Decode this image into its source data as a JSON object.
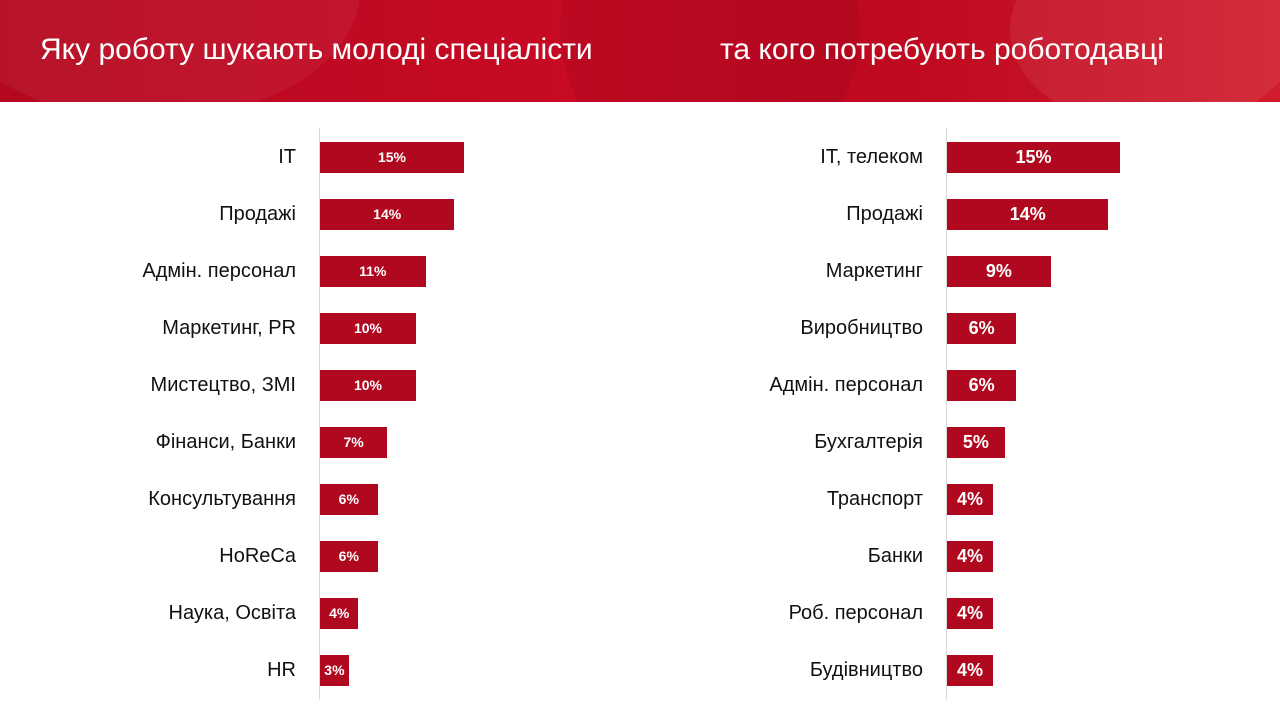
{
  "header": {
    "left_title": "Яку роботу шукають молоді спеціалісти",
    "right_title": "та кого потребують роботодавці"
  },
  "colors": {
    "banner": "#c80a24",
    "bar": "#b0091f",
    "bar_text": "#ffffff"
  },
  "chart_data": [
    {
      "type": "bar",
      "orientation": "horizontal",
      "title": "Яку роботу шукають молоді спеціалісти",
      "categories": [
        "IT",
        "Продажі",
        "Адмін. персонал",
        "Маркетинг, PR",
        "Мистецтво, ЗМІ",
        "Фінанси, Банки",
        "Консультування",
        "HoReCa",
        "Наука, Освіта",
        "HR"
      ],
      "values": [
        15,
        14,
        11,
        10,
        10,
        7,
        6,
        6,
        4,
        3
      ],
      "value_labels": [
        "15%",
        "14%",
        "11%",
        "10%",
        "10%",
        "7%",
        "6%",
        "6%",
        "4%",
        "3%"
      ],
      "unit": "%",
      "xlim": [
        0,
        15
      ],
      "grid": false,
      "legend": "none"
    },
    {
      "type": "bar",
      "orientation": "horizontal",
      "title": "та кого потребують роботодавці",
      "categories": [
        "IT, телеком",
        "Продажі",
        "Маркетинг",
        "Виробництво",
        "Адмін. персонал",
        "Бухгалтерія",
        "Транспорт",
        "Банки",
        "Роб. персонал",
        "Будівництво"
      ],
      "values": [
        15,
        14,
        9,
        6,
        6,
        5,
        4,
        4,
        4,
        4
      ],
      "value_labels": [
        "15%",
        "14%",
        "9%",
        "6%",
        "6%",
        "5%",
        "4%",
        "4%",
        "4%",
        "4%"
      ],
      "unit": "%",
      "xlim": [
        0,
        15
      ],
      "grid": false,
      "legend": "none"
    }
  ]
}
